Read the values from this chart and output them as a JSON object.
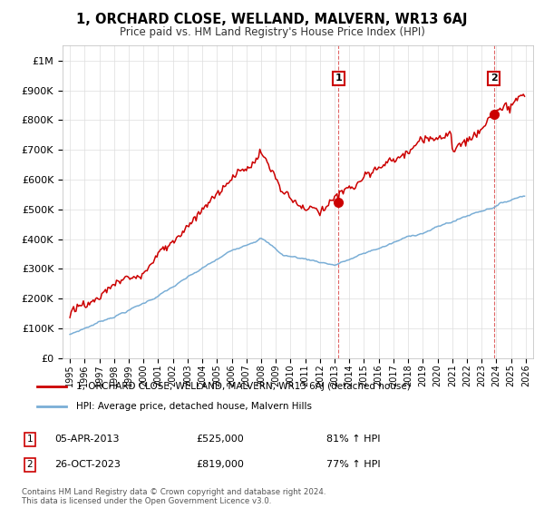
{
  "title": "1, ORCHARD CLOSE, WELLAND, MALVERN, WR13 6AJ",
  "subtitle": "Price paid vs. HM Land Registry's House Price Index (HPI)",
  "ylabel_ticks": [
    "£0",
    "£100K",
    "£200K",
    "£300K",
    "£400K",
    "£500K",
    "£600K",
    "£700K",
    "£800K",
    "£900K",
    "£1M"
  ],
  "ytick_values": [
    0,
    100000,
    200000,
    300000,
    400000,
    500000,
    600000,
    700000,
    800000,
    900000,
    1000000
  ],
  "ylim": [
    0,
    1050000
  ],
  "xlim_start": 1994.5,
  "xlim_end": 2026.5,
  "xtick_labels": [
    "1995",
    "1996",
    "1997",
    "1998",
    "1999",
    "2000",
    "2001",
    "2002",
    "2003",
    "2004",
    "2005",
    "2006",
    "2007",
    "2008",
    "2009",
    "2010",
    "2011",
    "2012",
    "2013",
    "2014",
    "2015",
    "2016",
    "2017",
    "2018",
    "2019",
    "2020",
    "2021",
    "2022",
    "2023",
    "2024",
    "2025",
    "2026"
  ],
  "transaction1_x": 2013.27,
  "transaction1_y": 525000,
  "transaction1_label": "1",
  "transaction1_date": "05-APR-2013",
  "transaction1_price": "£525,000",
  "transaction1_hpi": "81% ↑ HPI",
  "transaction2_x": 2023.82,
  "transaction2_y": 819000,
  "transaction2_label": "2",
  "transaction2_date": "26-OCT-2023",
  "transaction2_price": "£819,000",
  "transaction2_hpi": "77% ↑ HPI",
  "line_color_property": "#cc0000",
  "line_color_hpi": "#7aaed6",
  "background_color": "#ffffff",
  "grid_color": "#dddddd",
  "legend_label_property": "1, ORCHARD CLOSE, WELLAND, MALVERN, WR13 6AJ (detached house)",
  "legend_label_hpi": "HPI: Average price, detached house, Malvern Hills",
  "footnote": "Contains HM Land Registry data © Crown copyright and database right 2024.\nThis data is licensed under the Open Government Licence v3.0."
}
